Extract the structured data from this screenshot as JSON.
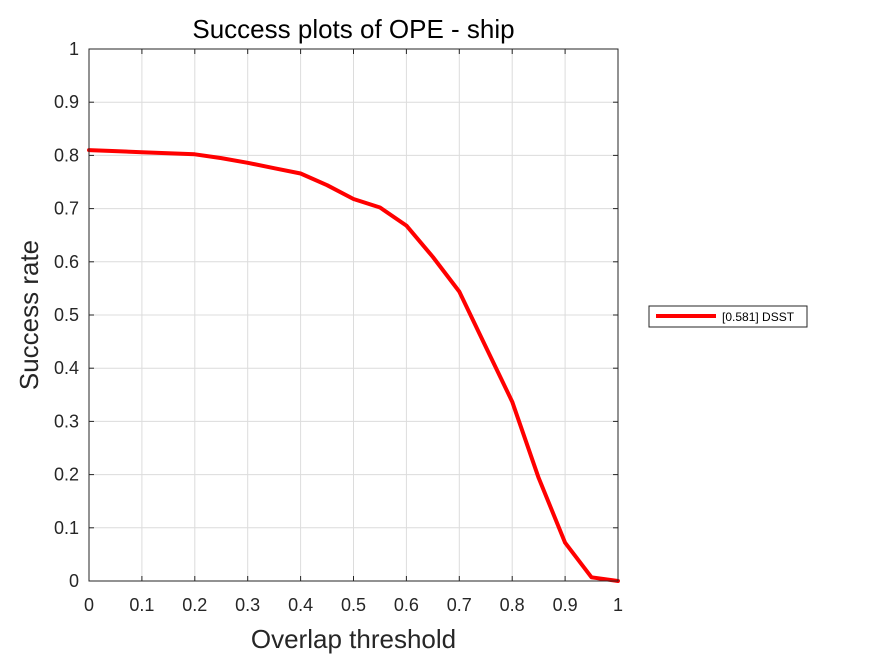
{
  "chart_data": {
    "type": "line",
    "title": "Success plots of OPE - ship",
    "xlabel": "Overlap threshold",
    "ylabel": "Success rate",
    "xlim": [
      0,
      1
    ],
    "ylim": [
      0,
      1
    ],
    "xticks": [
      "0",
      "0.1",
      "0.2",
      "0.3",
      "0.4",
      "0.5",
      "0.6",
      "0.7",
      "0.8",
      "0.9",
      "1"
    ],
    "yticks": [
      "0",
      "0.1",
      "0.2",
      "0.3",
      "0.4",
      "0.5",
      "0.6",
      "0.7",
      "0.8",
      "0.9",
      "1"
    ],
    "grid": true,
    "legend_position": "outside-right",
    "series": [
      {
        "name": "[0.581] DSST",
        "color": "#ff0000",
        "x": [
          0,
          0.05,
          0.1,
          0.15,
          0.2,
          0.25,
          0.3,
          0.35,
          0.4,
          0.45,
          0.5,
          0.55,
          0.6,
          0.65,
          0.7,
          0.75,
          0.8,
          0.85,
          0.9,
          0.95,
          1
        ],
        "y": [
          0.81,
          0.808,
          0.806,
          0.804,
          0.802,
          0.795,
          0.786,
          0.776,
          0.766,
          0.744,
          0.718,
          0.702,
          0.668,
          0.609,
          0.544,
          0.44,
          0.337,
          0.194,
          0.072,
          0.007,
          0
        ]
      }
    ]
  }
}
